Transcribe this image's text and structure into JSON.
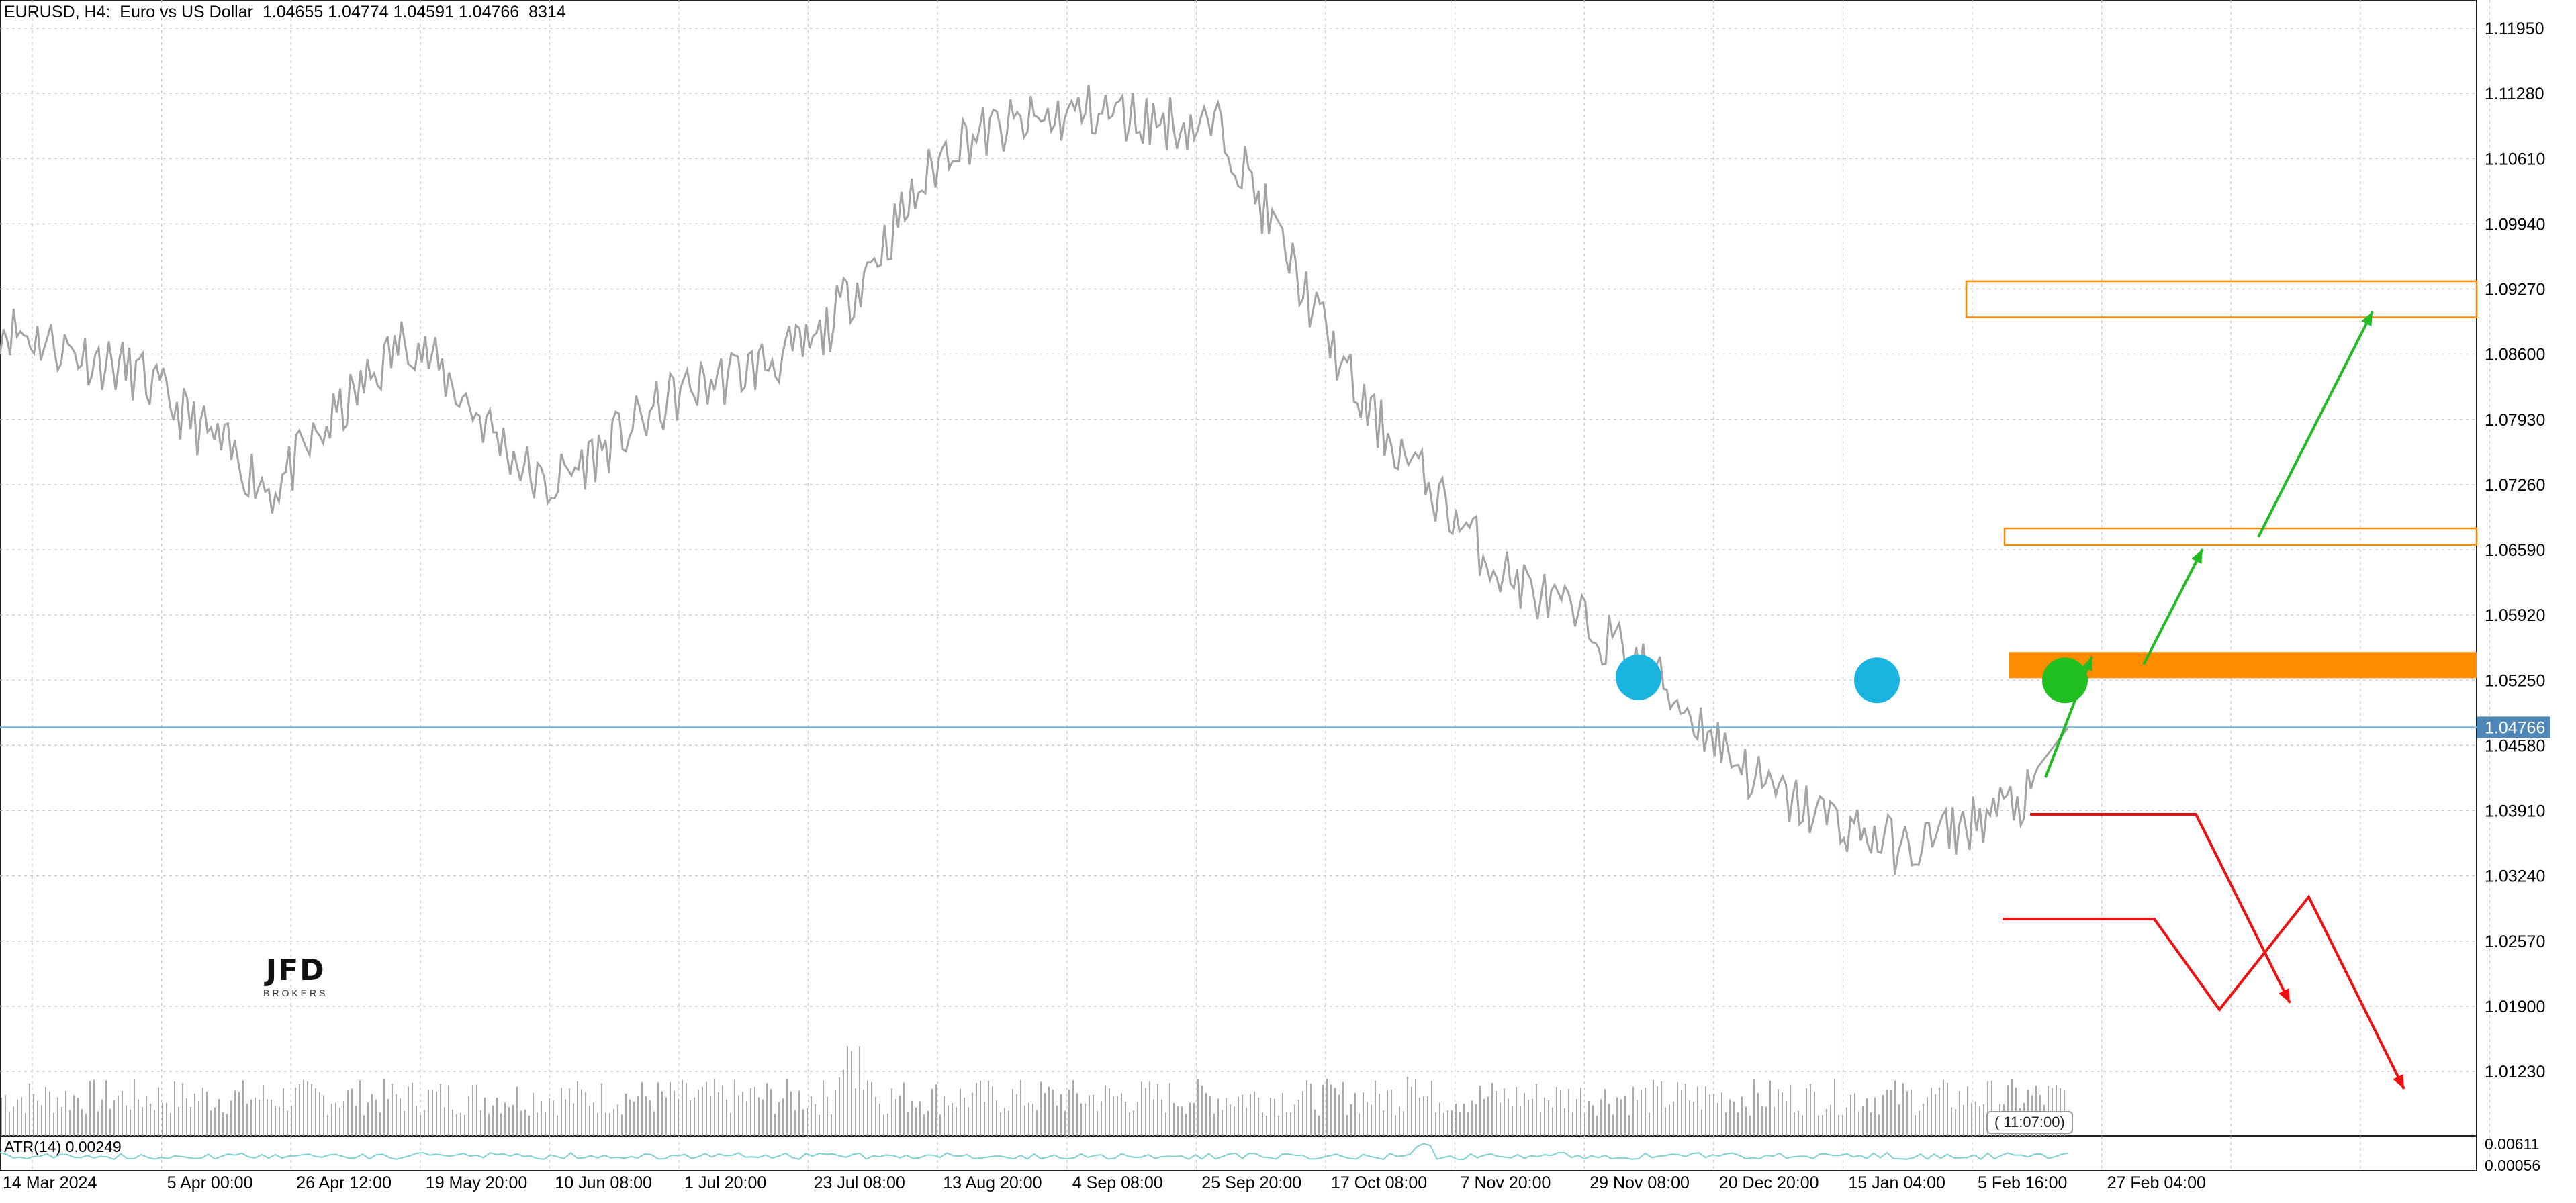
{
  "header": {
    "symbol": "EURUSD",
    "timeframe": "H4:",
    "description": "Euro vs US Dollar",
    "ohlc": "1.04655 1.04774 1.04591 1.04766",
    "count": "8314"
  },
  "logo": {
    "mark": "JFD",
    "sub": "BROKERS"
  },
  "countdown_badge": "( 11:07:00)",
  "indicator": {
    "label": "ATR(14) 0.00249",
    "scale": [
      "0.00611",
      "0.00056"
    ]
  },
  "colors": {
    "price_line": "#a4a4a4",
    "bid_line": "#7fb7d9",
    "grid": "#c8c8c8",
    "zone_fill": "#ff8c00",
    "zone_outline": "#ff8c00",
    "up_arrow": "#22bb22",
    "down_arrow": "#ee1111",
    "swing_marker": "#1ab4e0",
    "entry_marker": "#20c020",
    "atr_line": "#7fd1d1"
  },
  "chart_data": {
    "type": "line",
    "title": "EURUSD, H4",
    "price_axis": [
      "1.11950",
      "1.11280",
      "1.10610",
      "1.09940",
      "1.09270",
      "1.08600",
      "1.07930",
      "1.07260",
      "1.06590",
      "1.05920",
      "1.05250",
      "1.04580",
      "1.03910",
      "1.03240",
      "1.02570",
      "1.01900",
      "1.01230"
    ],
    "current_price": "1.04766",
    "time_axis": [
      "14 Mar 2024",
      "5 Apr 00:00",
      "26 Apr 12:00",
      "19 May 20:00",
      "10 Jun 08:00",
      "1 Jul 20:00",
      "23 Jul 08:00",
      "13 Aug 20:00",
      "4 Sep 08:00",
      "25 Sep 20:00",
      "17 Oct 08:00",
      "7 Nov 20:00",
      "29 Nov 08:00",
      "20 Dec 20:00",
      "15 Jan 04:00",
      "5 Feb 16:00",
      "27 Feb 04:00"
    ],
    "ylim": [
      1.008,
      1.1215
    ],
    "series": [
      {
        "x": [
          "14 Mar 2024",
          "5 Apr 00:00",
          "26 Apr 12:00",
          "19 May 20:00",
          "10 Jun 08:00",
          "1 Jul 20:00",
          "23 Jul 08:00",
          "13 Aug 20:00",
          "4 Sep 08:00",
          "25 Sep 20:00",
          "17 Oct 08:00",
          "7 Nov 20:00",
          "29 Nov 08:00",
          "20 Dec 20:00",
          "15 Jan 04:00",
          "5 Feb 16:00"
        ],
        "values": [
          1.089,
          1.084,
          1.072,
          1.088,
          1.072,
          1.082,
          1.087,
          1.108,
          1.111,
          1.109,
          1.081,
          1.064,
          1.055,
          1.041,
          1.035,
          1.041
        ]
      }
    ],
    "zones": [
      {
        "from": 1.0898,
        "to": 1.0935,
        "style": "outline"
      },
      {
        "from": 1.0664,
        "to": 1.0681,
        "style": "outline"
      },
      {
        "from": 1.0527,
        "to": 1.0554,
        "style": "filled"
      }
    ],
    "markers": [
      {
        "x": "29 Nov 08:00",
        "price": 1.0528,
        "kind": "swing"
      },
      {
        "x": "15 Jan 04:00",
        "price": 1.0525,
        "kind": "swing"
      },
      {
        "x": "27 Feb 04:00",
        "price": 1.0525,
        "kind": "entry"
      }
    ],
    "grid": true,
    "volume_histogram": true
  }
}
